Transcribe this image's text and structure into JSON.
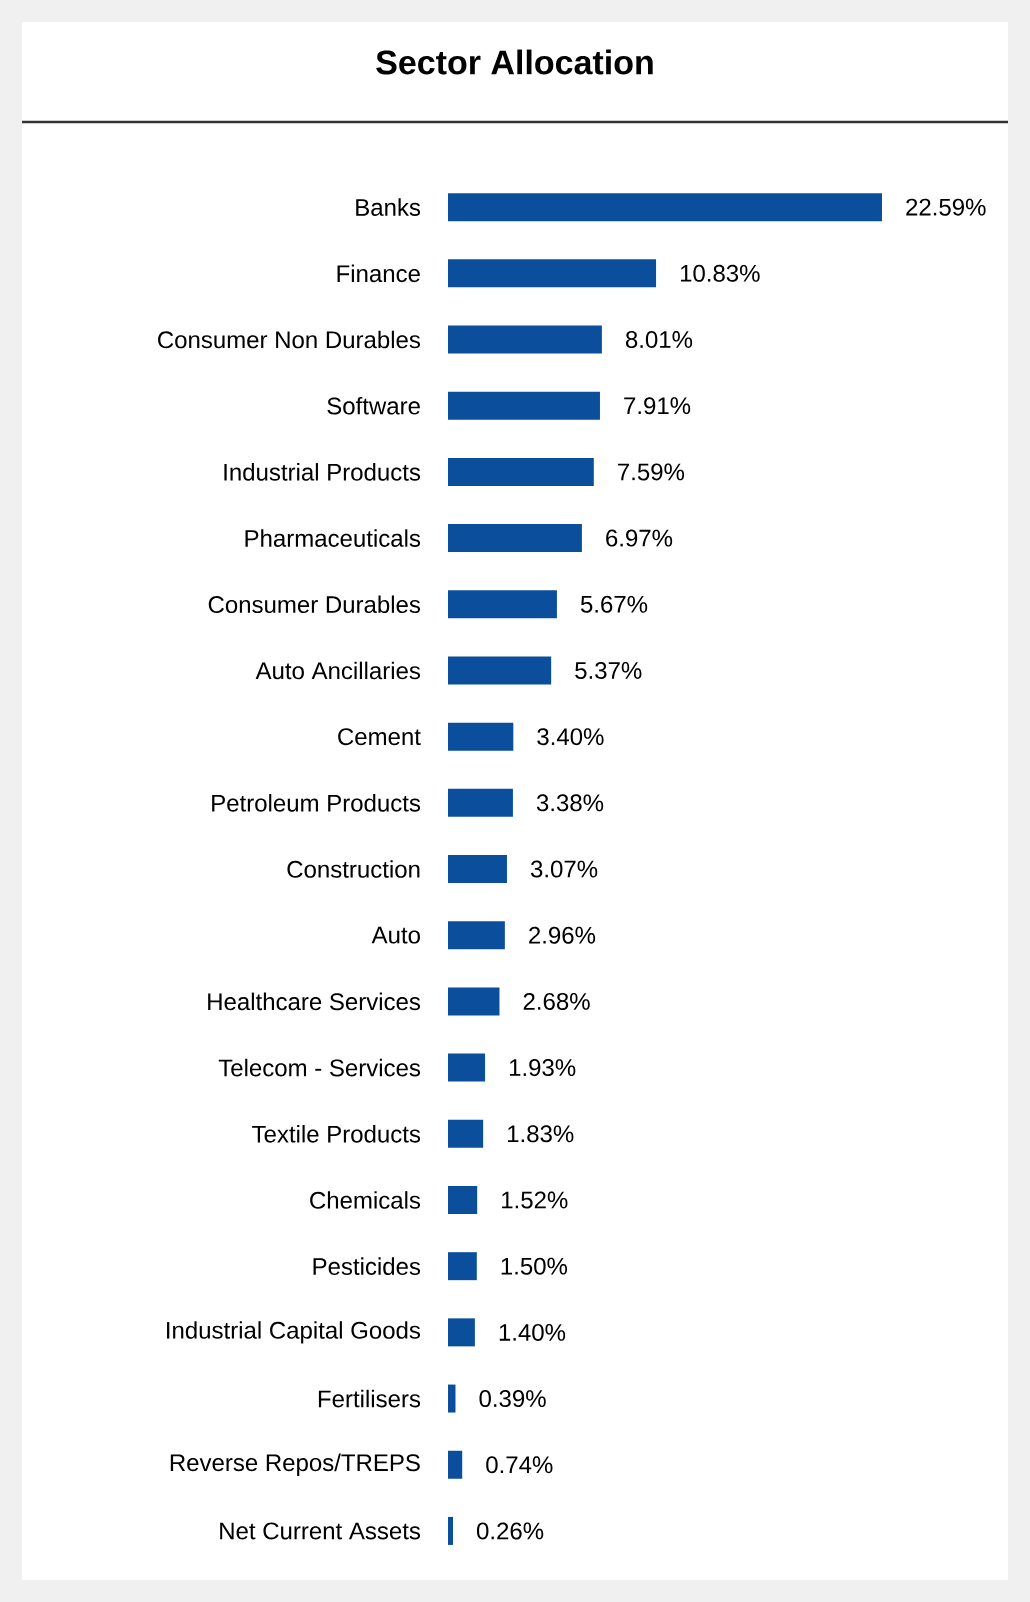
{
  "chart_data": {
    "type": "bar",
    "orientation": "horizontal",
    "title": "Sector Allocation",
    "categories": [
      "Banks",
      "Finance",
      "Consumer Non Durables",
      "Software",
      "Industrial Products",
      "Pharmaceuticals",
      "Consumer Durables",
      "Auto Ancillaries",
      "Cement",
      "Petroleum Products",
      "Construction",
      "Auto",
      "Healthcare Services",
      "Telecom - Services",
      "Textile Products",
      "Chemicals",
      "Pesticides",
      "Industrial Capital Goods",
      "Fertilisers",
      "Reverse Repos/TREPS",
      "Net Current Assets"
    ],
    "values": [
      22.59,
      10.83,
      8.01,
      7.91,
      7.59,
      6.97,
      5.67,
      5.37,
      3.4,
      3.38,
      3.07,
      2.96,
      2.68,
      1.93,
      1.83,
      1.52,
      1.5,
      1.4,
      0.39,
      0.74,
      0.26
    ],
    "value_labels": [
      "22.59%",
      "10.83%",
      "8.01%",
      "7.91%",
      "7.59%",
      "6.97%",
      "5.67%",
      "5.37%",
      "3.40%",
      "3.38%",
      "3.07%",
      "2.96%",
      "2.68%",
      "1.93%",
      "1.83%",
      "1.52%",
      "1.50%",
      "1.40%",
      "0.39%",
      "0.74%",
      "0.26%"
    ],
    "color": "#0b4f9c"
  }
}
